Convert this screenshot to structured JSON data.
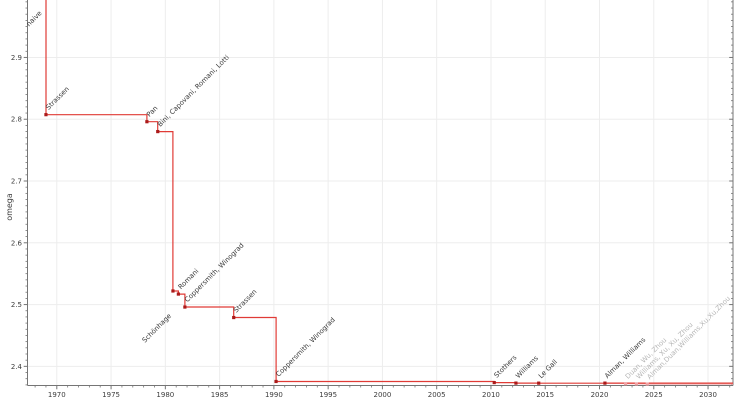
{
  "chart_data": {
    "type": "line",
    "step": "post",
    "title": "",
    "xlabel": "",
    "ylabel": "omega",
    "xlim": [
      1967.3,
      2032.3
    ],
    "ylim": [
      2.369,
      2.993
    ],
    "grid": true,
    "legend": false,
    "x_major_ticks": [
      1970,
      1975,
      1980,
      1985,
      1990,
      1995,
      2000,
      2005,
      2010,
      2015,
      2020,
      2025,
      2030
    ],
    "x_minor_step": 1,
    "y_major_ticks": [
      2.4,
      2.5,
      2.6,
      2.7,
      2.8,
      2.9,
      3.0
    ],
    "y_minor_step": 0.01,
    "colors": {
      "line": "#e03b36",
      "marker": "#ab1a1a",
      "faded_line": "#f4b6b8",
      "faded_marker": "#f0a3a6",
      "label": "#3a3a3a",
      "faded_label": "#b6b6b6",
      "grid": "#ededed",
      "spine": "#757575",
      "tick": "#757575",
      "tick_label": "#3c3c3c"
    },
    "points": [
      {
        "year": 1969.0,
        "omega": 3.0,
        "label": "naive",
        "faded": false,
        "label_offset": [
          -17,
          31
        ]
      },
      {
        "year": 1969.0,
        "omega": 2.8074,
        "label": "Strassen",
        "faded": false
      },
      {
        "year": 1978.3,
        "omega": 2.796,
        "label": "Pan",
        "faded": false
      },
      {
        "year": 1979.3,
        "omega": 2.78,
        "label": "Bini, Capovani, Romani, Lotti",
        "faded": false
      },
      {
        "year": 1980.7,
        "omega": 2.522,
        "label": "Schönhage",
        "faded": false,
        "label_offset": [
          -28,
          52
        ]
      },
      {
        "year": 1981.2,
        "omega": 2.517,
        "label": "Romani",
        "faded": false
      },
      {
        "year": 1981.8,
        "omega": 2.496,
        "label": "Coppersmith, Winograd",
        "faded": false
      },
      {
        "year": 1986.3,
        "omega": 2.479,
        "label": "Strassen",
        "faded": false
      },
      {
        "year": 1990.2,
        "omega": 2.3755,
        "label": "Coppersmith, Winograd",
        "faded": false
      },
      {
        "year": 2010.3,
        "omega": 2.3737,
        "label": "Stothers",
        "faded": false
      },
      {
        "year": 2012.3,
        "omega": 2.3729,
        "label": "Williams",
        "faded": false
      },
      {
        "year": 2014.4,
        "omega": 2.3728,
        "label": "Le Gall",
        "faded": false
      },
      {
        "year": 2020.5,
        "omega": 2.37286,
        "label": "Alman, Williams",
        "faded": false
      },
      {
        "year": 2022.4,
        "omega": 2.37188,
        "label": "Duan, Wu, Zhou",
        "faded": true
      },
      {
        "year": 2023.4,
        "omega": 2.371552,
        "label": "Williams, Xu, Xu, Zhou",
        "faded": true
      },
      {
        "year": 2024.4,
        "omega": 2.371339,
        "label": "Alman,Duan,Williams,Xu,Xu,Zhou",
        "faded": true
      }
    ]
  }
}
